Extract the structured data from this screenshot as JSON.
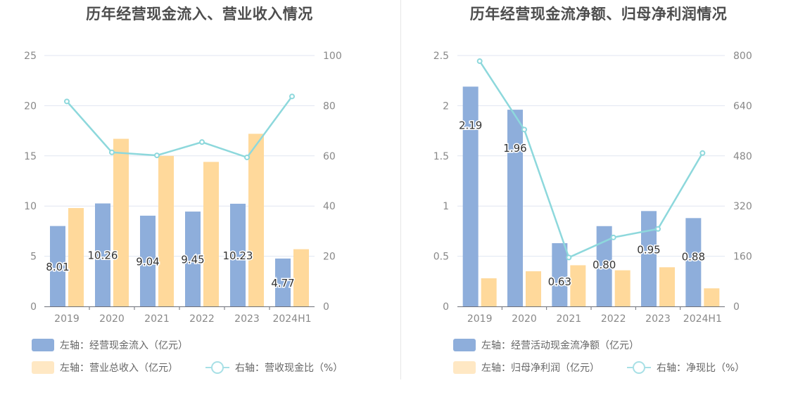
{
  "chart_data": [
    {
      "type": "bar",
      "title": "历年经营现金流入、营业收入情况",
      "categories": [
        "2019",
        "2020",
        "2021",
        "2022",
        "2023",
        "2024H1"
      ],
      "left_axis": {
        "ylim": [
          0,
          25
        ],
        "ticks": [
          "0",
          "5",
          "10",
          "15",
          "20",
          "25"
        ]
      },
      "right_axis": {
        "ylim": [
          0,
          100
        ],
        "ticks": [
          "0",
          "20",
          "40",
          "60",
          "80",
          "100"
        ]
      },
      "series": [
        {
          "name": "左轴：经营现金流入（亿元）",
          "type": "bar",
          "axis": "left",
          "color": "#8eaedb",
          "values": [
            8.01,
            10.26,
            9.04,
            9.45,
            10.23,
            4.77
          ],
          "labels": [
            "8.01",
            "10.26",
            "9.04",
            "9.45",
            "10.23",
            "4.77"
          ]
        },
        {
          "name": "左轴：营业总收入（亿元）",
          "type": "bar",
          "axis": "left",
          "color": "#ffd99b",
          "values": [
            9.8,
            16.7,
            15.0,
            14.4,
            17.2,
            5.7
          ]
        },
        {
          "name": "右轴：营收现金比（%）",
          "type": "line",
          "axis": "right",
          "color": "#8dd8dc",
          "values": [
            81.7,
            61.4,
            60.2,
            65.5,
            59.4,
            83.7
          ]
        }
      ],
      "grid": true
    },
    {
      "type": "bar",
      "title": "历年经营现金流净额、归母净利润情况",
      "categories": [
        "2019",
        "2020",
        "2021",
        "2022",
        "2023",
        "2024H1"
      ],
      "left_axis": {
        "ylim": [
          0,
          2.5
        ],
        "ticks": [
          "0",
          "0.5",
          "1",
          "1.5",
          "2",
          "2.5"
        ]
      },
      "right_axis": {
        "ylim": [
          0,
          800
        ],
        "ticks": [
          "0",
          "160",
          "320",
          "480",
          "640",
          "800"
        ]
      },
      "series": [
        {
          "name": "左轴：经营活动现金流净额（亿元）",
          "type": "bar",
          "axis": "left",
          "color": "#8eaedb",
          "values": [
            2.19,
            1.96,
            0.63,
            0.8,
            0.95,
            0.88
          ],
          "labels": [
            "2.19",
            "1.96",
            "0.63",
            "0.80",
            "0.95",
            "0.88"
          ]
        },
        {
          "name": "左轴：归母净利润（亿元）",
          "type": "bar",
          "axis": "left",
          "color": "#ffd99b",
          "values": [
            0.28,
            0.35,
            0.41,
            0.36,
            0.39,
            0.18
          ]
        },
        {
          "name": "右轴：净现比（%）",
          "type": "line",
          "axis": "right",
          "color": "#8dd8dc",
          "values": [
            782,
            564,
            156,
            220,
            247,
            489
          ]
        }
      ],
      "grid": true
    }
  ]
}
